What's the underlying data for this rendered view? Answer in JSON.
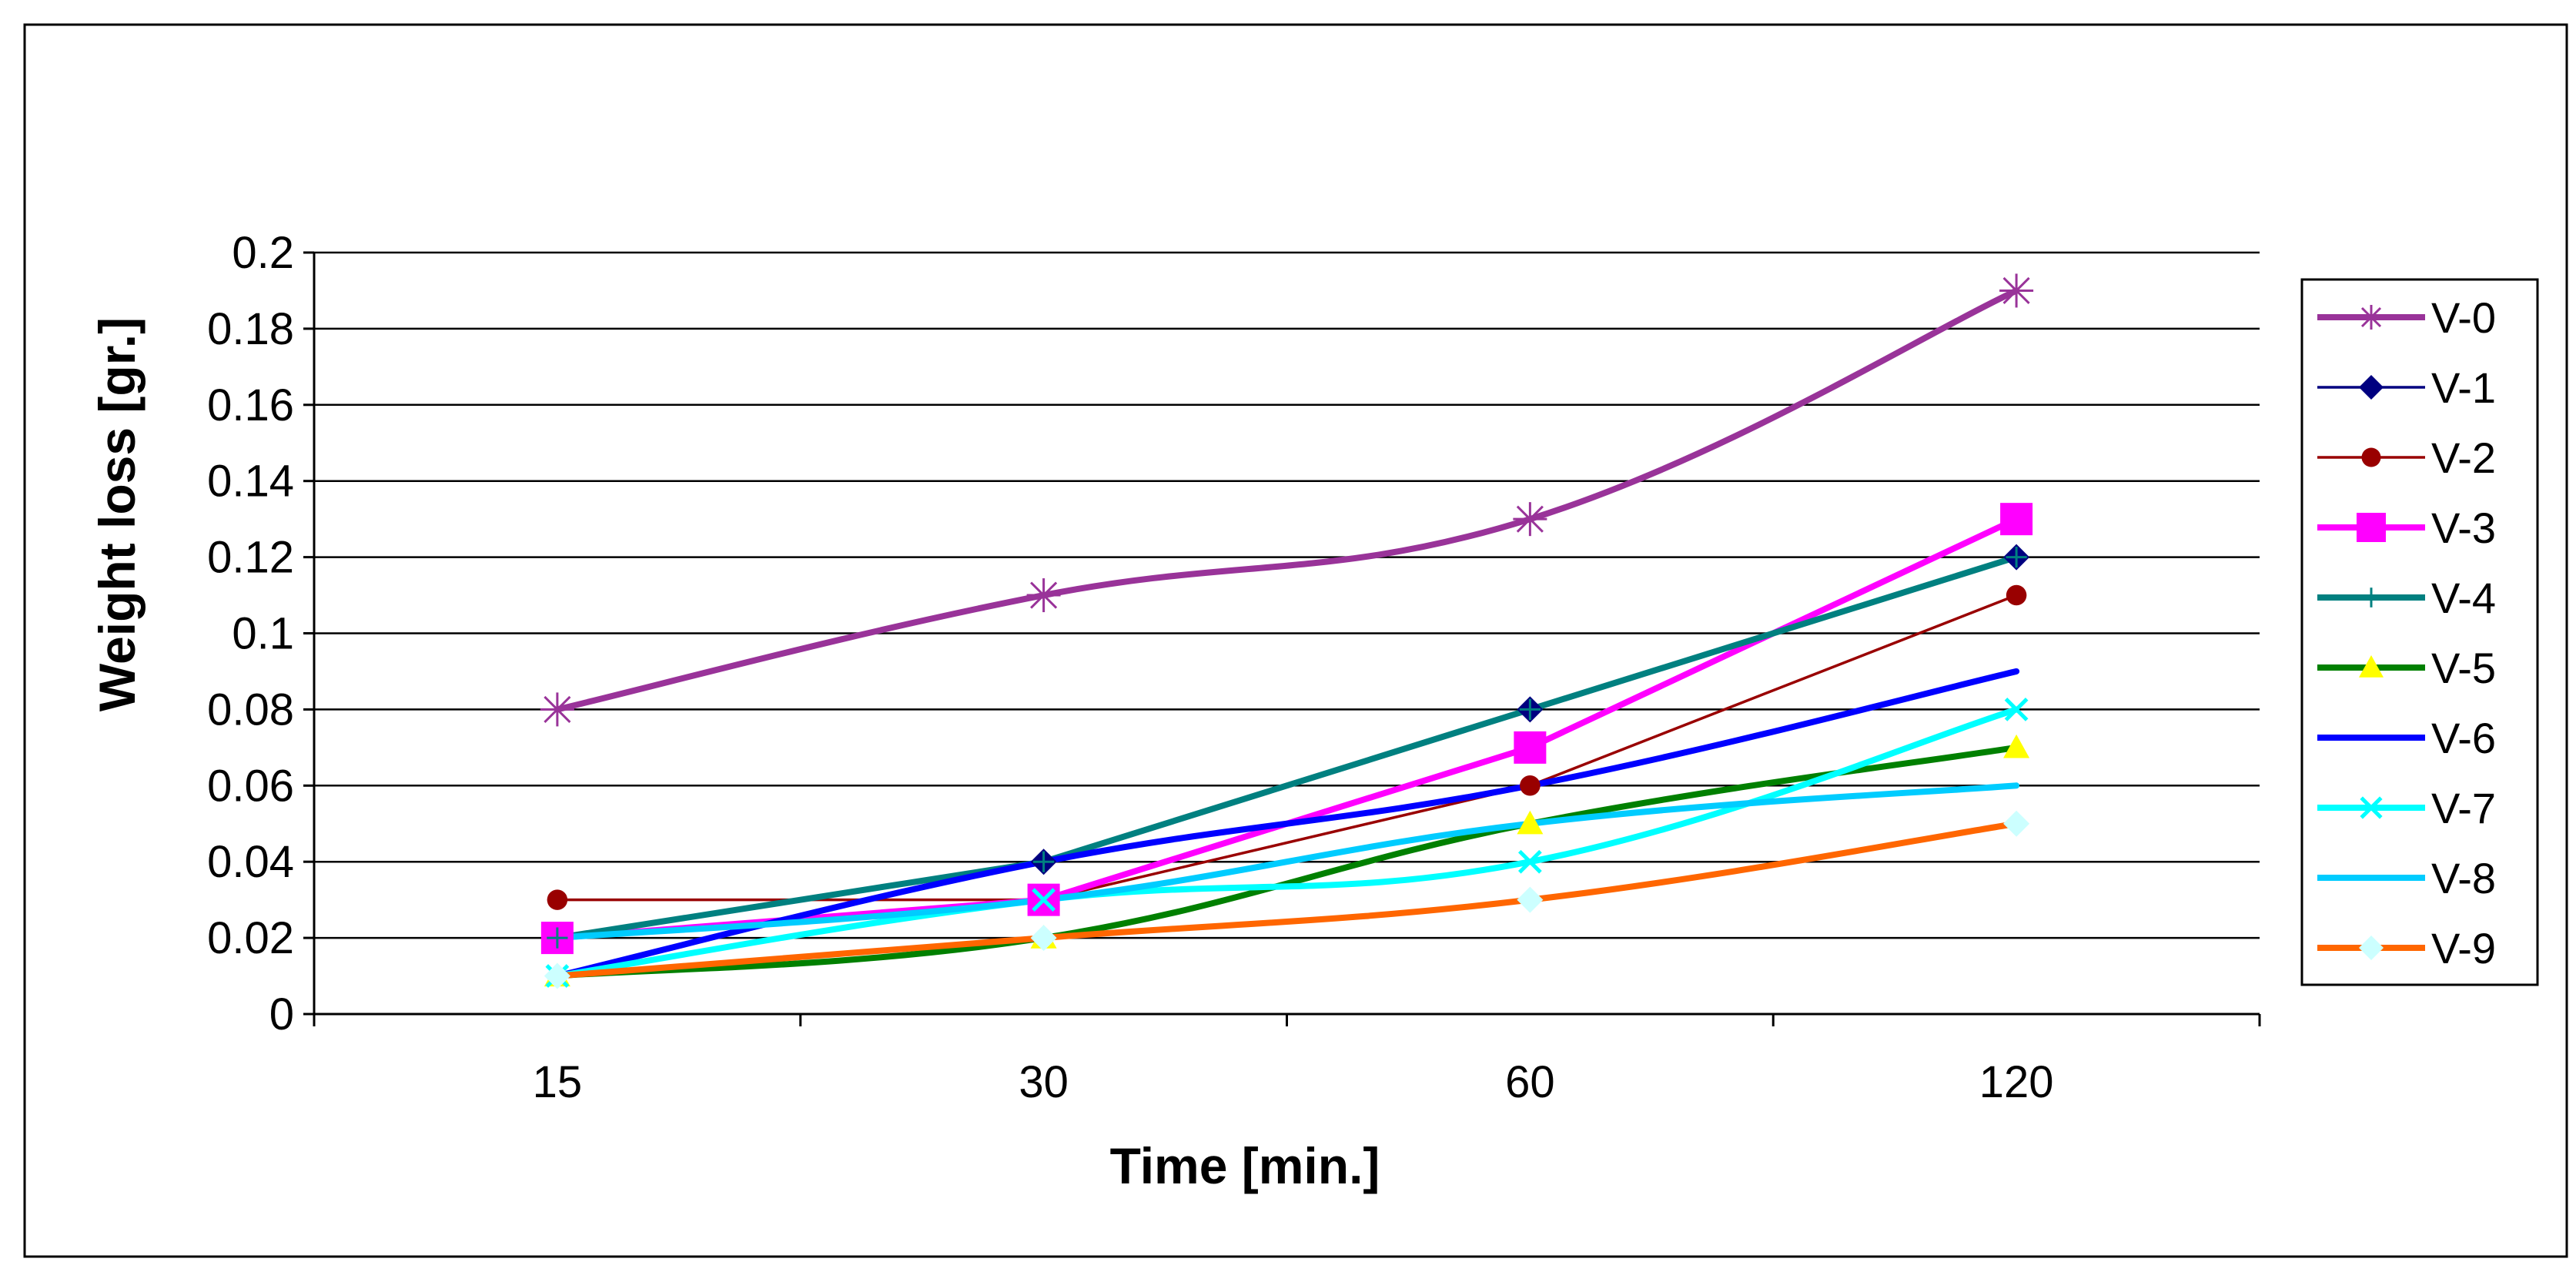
{
  "chart_data": {
    "type": "line",
    "title": "",
    "xlabel": "Time [min.]",
    "ylabel": "Weight loss [gr.]",
    "categories": [
      "15",
      "30",
      "60",
      "120"
    ],
    "ylim": [
      0,
      0.2
    ],
    "yticks": [
      "0",
      "0.02",
      "0.04",
      "0.06",
      "0.08",
      "0.1",
      "0.12",
      "0.14",
      "0.16",
      "0.18",
      "0.2"
    ],
    "grid": "horizontal",
    "legend": "right",
    "series": [
      {
        "name": "V-0",
        "values": [
          0.08,
          0.11,
          0.13,
          0.19
        ],
        "color": "#993399",
        "marker": "star",
        "smooth": true,
        "width": "thick"
      },
      {
        "name": "V-1",
        "values": [
          0.02,
          0.04,
          0.08,
          0.12
        ],
        "color": "#000080",
        "marker": "diamond",
        "smooth": false,
        "width": "thin"
      },
      {
        "name": "V-2",
        "values": [
          0.03,
          0.03,
          0.06,
          0.11
        ],
        "color": "#990000",
        "marker": "circle",
        "smooth": false,
        "width": "thin"
      },
      {
        "name": "V-3",
        "values": [
          0.02,
          0.03,
          0.07,
          0.13
        ],
        "color": "#ff00ff",
        "marker": "square",
        "smooth": false,
        "width": "thick"
      },
      {
        "name": "V-4",
        "values": [
          0.02,
          0.04,
          0.08,
          0.12
        ],
        "color": "#008080",
        "marker": "plus",
        "smooth": false,
        "width": "thick"
      },
      {
        "name": "V-5",
        "values": [
          0.01,
          0.02,
          0.05,
          0.07
        ],
        "color": "#008000",
        "marker": "triangle",
        "smooth": true,
        "width": "thick"
      },
      {
        "name": "V-6",
        "values": [
          0.01,
          0.04,
          0.06,
          0.09
        ],
        "color": "#0000ff",
        "marker": "none",
        "smooth": true,
        "width": "thick"
      },
      {
        "name": "V-7",
        "values": [
          0.01,
          0.03,
          0.04,
          0.08
        ],
        "color": "#00ffff",
        "marker": "x",
        "smooth": true,
        "width": "thick"
      },
      {
        "name": "V-8",
        "values": [
          0.02,
          0.03,
          0.05,
          0.06
        ],
        "color": "#00ccff",
        "marker": "none",
        "smooth": true,
        "width": "thick"
      },
      {
        "name": "V-9",
        "values": [
          0.01,
          0.02,
          0.03,
          0.05
        ],
        "color": "#ff6600",
        "marker": "diamond",
        "marker_color": "#ccffff",
        "smooth": true,
        "width": "thick"
      }
    ]
  }
}
